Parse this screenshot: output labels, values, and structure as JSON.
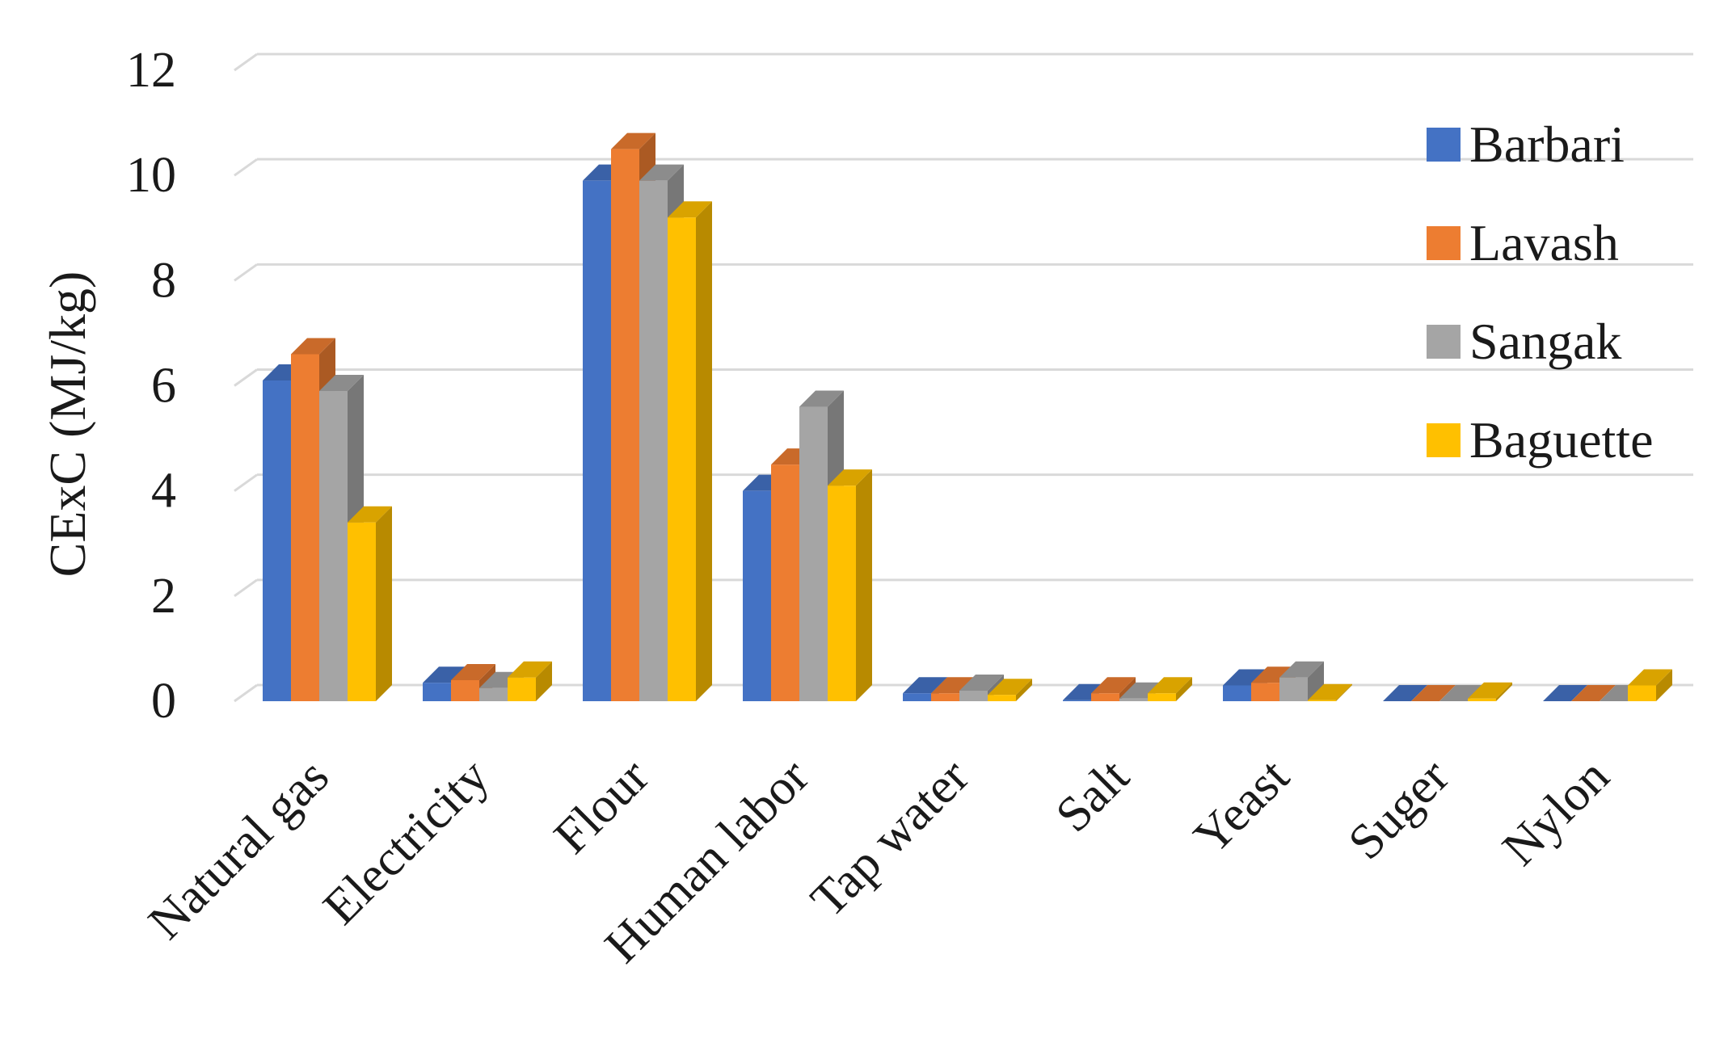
{
  "chart_data": {
    "type": "bar",
    "title": "",
    "xlabel": "",
    "ylabel": "CExC (MJ/kg)",
    "ylim": [
      0,
      12
    ],
    "yticks": [
      0,
      2,
      4,
      6,
      8,
      10,
      12
    ],
    "grid": true,
    "legend_position": "right",
    "categories": [
      "Natural gas",
      "Electricity",
      "Flour",
      "Human labor",
      "Tap water",
      "Salt",
      "Yeast",
      "Suger",
      "Nylon"
    ],
    "series": [
      {
        "name": "Barbari",
        "color": "#4472C4",
        "values": [
          6.1,
          0.35,
          9.9,
          4.0,
          0.15,
          0.02,
          0.3,
          0,
          0
        ]
      },
      {
        "name": "Lavash",
        "color": "#ED7D31",
        "values": [
          6.6,
          0.4,
          10.5,
          4.5,
          0.15,
          0.15,
          0.35,
          0,
          0
        ]
      },
      {
        "name": "Sangak",
        "color": "#A5A5A5",
        "values": [
          5.9,
          0.25,
          9.9,
          5.6,
          0.2,
          0.05,
          0.45,
          0,
          0
        ]
      },
      {
        "name": "Baguette",
        "color": "#FFC000",
        "values": [
          3.4,
          0.45,
          9.2,
          4.1,
          0.12,
          0.15,
          0.02,
          0.05,
          0.3
        ]
      }
    ]
  }
}
